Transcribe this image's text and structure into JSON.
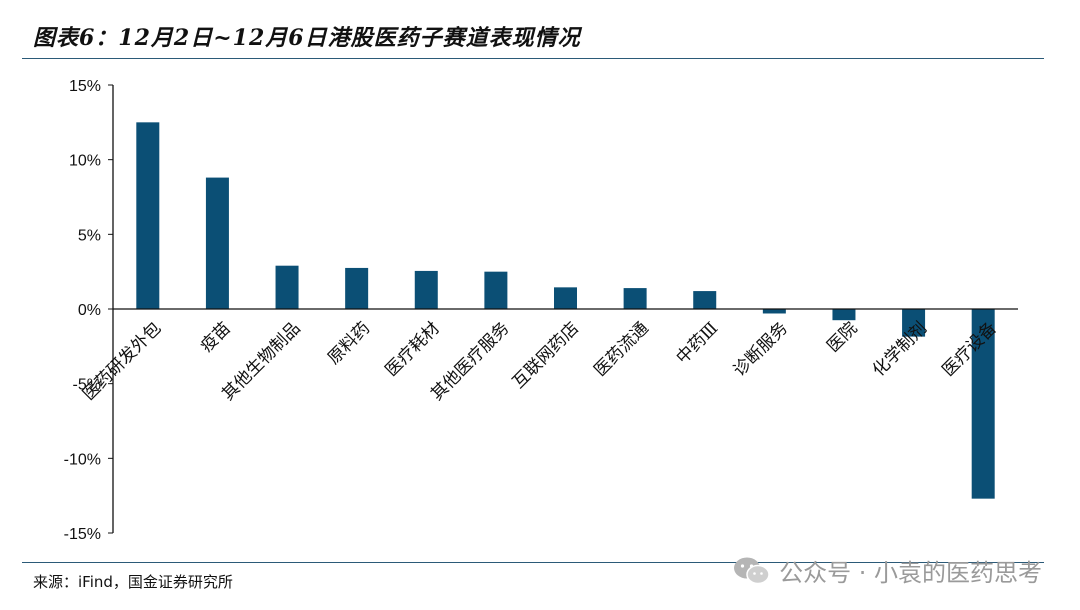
{
  "figure": {
    "title": "图表6：12月2日~12月6日港股医药子赛道表现情况",
    "source": "来源：iFind，国金证券研究所"
  },
  "watermark": {
    "text": "公众号 · 小袁的医药思考",
    "icon": "wechat-icon"
  },
  "colors": {
    "bar": "#0b4f75",
    "rule": "#2b5a78",
    "axis": "#111111"
  },
  "chart_data": {
    "type": "bar",
    "categories": [
      "医药研发外包",
      "疫苗",
      "其他生物制品",
      "原料药",
      "医疗耗材",
      "其他医疗服务",
      "互联网药店",
      "医药流通",
      "中药Ⅲ",
      "诊断服务",
      "医院",
      "化学制剂",
      "医疗设备"
    ],
    "values": [
      12.5,
      8.8,
      2.9,
      2.75,
      2.55,
      2.5,
      1.45,
      1.4,
      1.2,
      -0.3,
      -0.75,
      -1.85,
      -12.7
    ],
    "yticks": [
      "15%",
      "10%",
      "5%",
      "0%",
      "-5%",
      "-10%",
      "-15%"
    ],
    "ytick_values": [
      15,
      10,
      5,
      0,
      -5,
      -10,
      -15
    ],
    "ylim": [
      -15,
      15
    ],
    "grid": false
  }
}
